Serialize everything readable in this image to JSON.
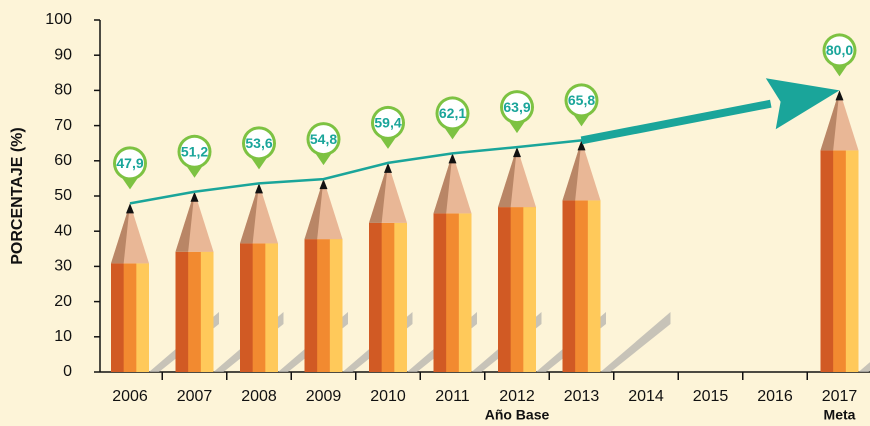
{
  "chart_data": {
    "type": "pencil-bar",
    "y_axis_label": "PORCENTAJE (%)",
    "categories": [
      "2006",
      "2007",
      "2008",
      "2009",
      "2010",
      "2011",
      "2012",
      "2013",
      "2014",
      "2015",
      "2016",
      "2017"
    ],
    "category_notes": [
      null,
      null,
      null,
      null,
      null,
      null,
      "Año Base",
      null,
      null,
      null,
      null,
      "Meta"
    ],
    "values": [
      47.9,
      51.2,
      53.6,
      54.8,
      59.4,
      62.1,
      63.9,
      65.8,
      null,
      null,
      null,
      80.0
    ],
    "value_labels": [
      "47,9",
      "51,2",
      "53,6",
      "54,8",
      "59,4",
      "62,1",
      "63,9",
      "65,8",
      null,
      null,
      null,
      "80,0"
    ],
    "color": "#f28a30",
    "line_color": "#1aa59a",
    "pin_color": "#7dc242",
    "ylim": [
      0,
      100
    ],
    "yticks": [
      0,
      10,
      20,
      30,
      40,
      50,
      60,
      70,
      80,
      90,
      100
    ]
  }
}
